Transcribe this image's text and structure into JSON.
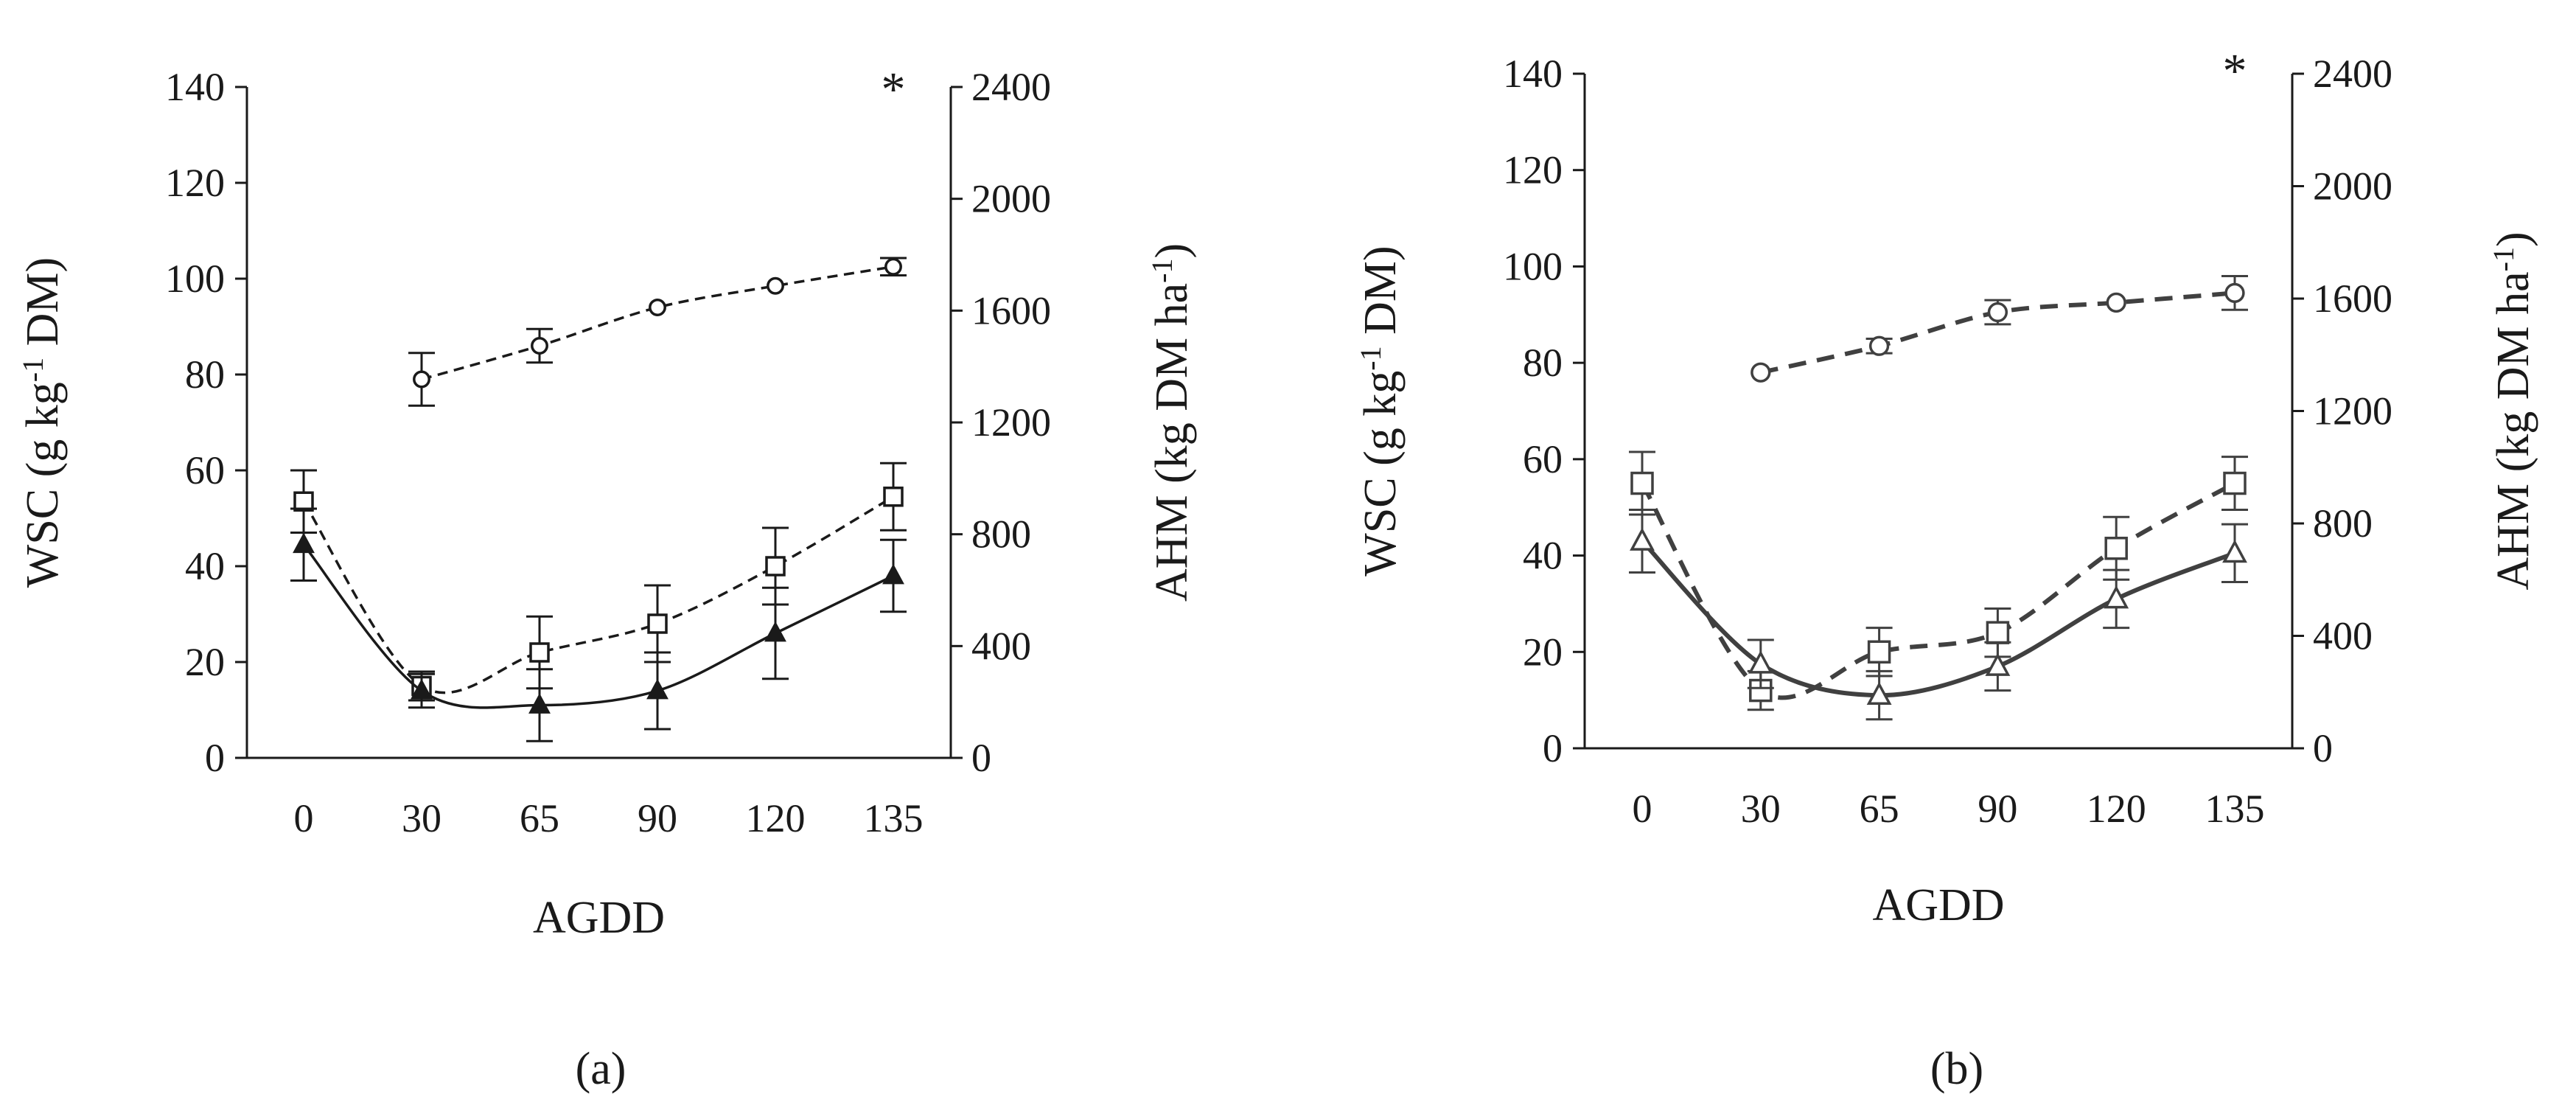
{
  "figure": {
    "caption_a": "(a)",
    "caption_b": "(b)"
  },
  "chart_data": [
    {
      "panel": "a",
      "type": "line",
      "categories": [
        "0",
        "30",
        "65",
        "90",
        "120",
        "135"
      ],
      "xlabel": "AGDD",
      "ylabel": {
        "prefix": "WSC (g kg",
        "sup": "-1",
        "suffix": " DM)"
      },
      "y2label": {
        "prefix": "AHM (kg DM ha",
        "sup": "-1",
        "suffix": ")"
      },
      "ylim": [
        0,
        140
      ],
      "y2lim": [
        0,
        2400
      ],
      "yticks": [
        0,
        20,
        40,
        60,
        80,
        100,
        120,
        140
      ],
      "y2ticks": [
        0,
        400,
        800,
        1200,
        1600,
        2000,
        2400
      ],
      "annotation": "*",
      "color": "#1a1a1a",
      "series": [
        {
          "name": "circle",
          "marker": "circle",
          "axis": "y",
          "style": "dashed",
          "values": [
            null,
            79,
            86,
            94,
            98.5,
            102.5
          ],
          "errors": [
            null,
            5.5,
            3.5,
            0,
            0,
            1.8
          ]
        },
        {
          "name": "square",
          "marker": "square",
          "axis": "y",
          "style": "dashed",
          "values": [
            53.5,
            15,
            22,
            28,
            40,
            54.5
          ],
          "errors": [
            6.5,
            3,
            7.5,
            8,
            8,
            7
          ]
        },
        {
          "name": "triangle",
          "marker": "triangle",
          "axis": "y",
          "style": "solid",
          "values": [
            44.5,
            14,
            11,
            14,
            26,
            38
          ],
          "errors": [
            7.5,
            3.5,
            7.5,
            8,
            9.5,
            7.5
          ]
        }
      ]
    },
    {
      "panel": "b",
      "type": "line",
      "categories": [
        "0",
        "30",
        "65",
        "90",
        "120",
        "135"
      ],
      "xlabel": "AGDD",
      "ylabel": {
        "prefix": "WSC (g kg",
        "sup": "-1",
        "suffix": " DM)"
      },
      "y2label": {
        "prefix": "AHM (kg DM ha",
        "sup": "-1",
        "suffix": ")"
      },
      "ylim": [
        0,
        140
      ],
      "y2lim": [
        0,
        2400
      ],
      "yticks": [
        0,
        20,
        40,
        60,
        80,
        100,
        120,
        140
      ],
      "y2ticks": [
        0,
        400,
        800,
        1200,
        1600,
        2000,
        2400
      ],
      "annotation": "*",
      "color": "#404040",
      "series": [
        {
          "name": "circle",
          "marker": "circle",
          "axis": "y",
          "style": "dashed",
          "values": [
            null,
            78,
            83.5,
            90.5,
            92.5,
            94.5
          ],
          "errors": [
            null,
            0,
            1.5,
            2.5,
            0,
            3.5
          ]
        },
        {
          "name": "square",
          "marker": "square",
          "axis": "y",
          "style": "dashed",
          "values": [
            55,
            12,
            20,
            24,
            41.5,
            55
          ],
          "errors": [
            6.5,
            4,
            5,
            5,
            6.5,
            5.5
          ]
        },
        {
          "name": "triangle",
          "marker": "triangle",
          "axis": "y",
          "style": "solid",
          "values": [
            43,
            17.5,
            11,
            17,
            31,
            40.5
          ],
          "errors": [
            6.5,
            5,
            5,
            5,
            6,
            6
          ]
        }
      ]
    }
  ]
}
